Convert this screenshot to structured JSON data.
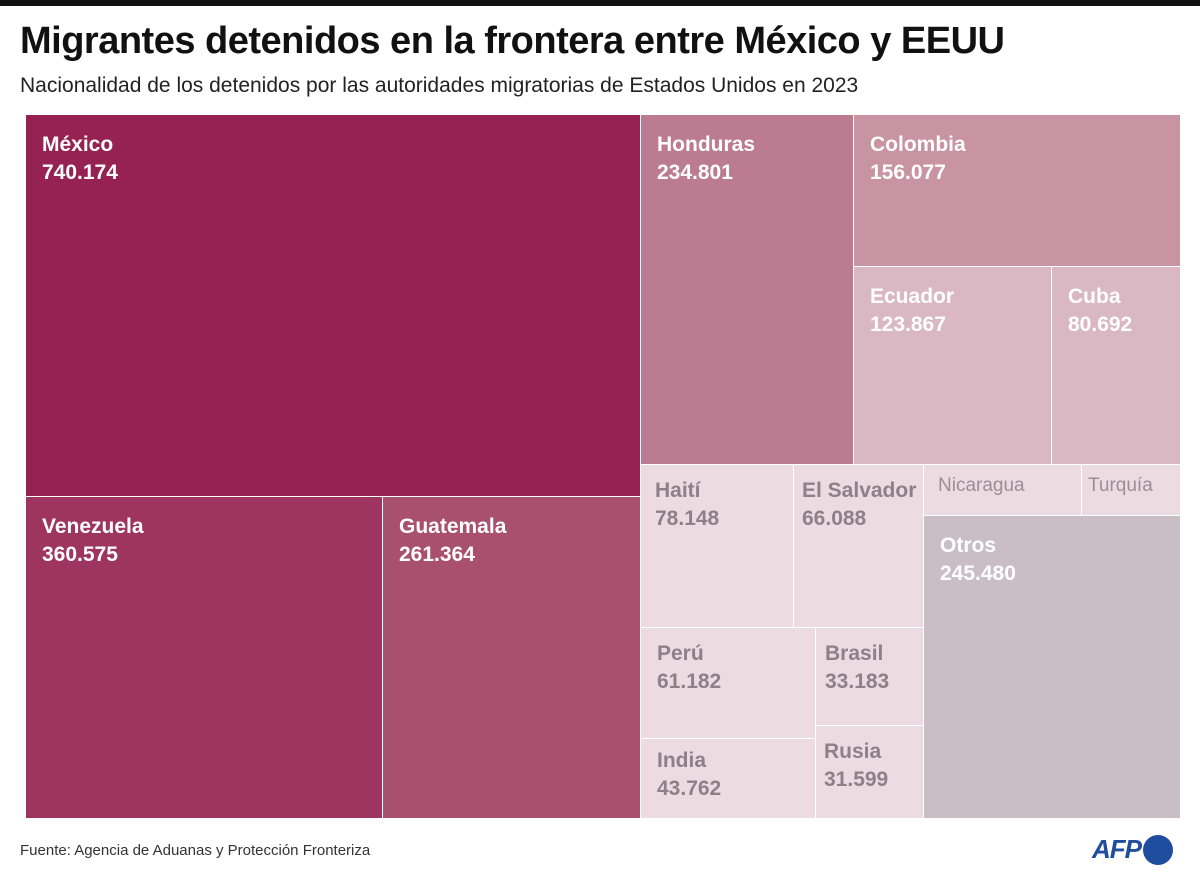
{
  "title": "Migrantes detenidos en la frontera entre México y EEUU",
  "subtitle": "Nacionalidad de los detenidos por las autoridades migratorias de Estados Unidos en 2023",
  "source": "Fuente: Agencia de Aduanas y Protección Fronteriza",
  "logo": "AFP",
  "chart_data": {
    "type": "treemap",
    "items": [
      {
        "name": "México",
        "label": "740.174",
        "value": 740174,
        "color": "#952253"
      },
      {
        "name": "Venezuela",
        "label": "360.575",
        "value": 360575,
        "color": "#9d3560"
      },
      {
        "name": "Guatemala",
        "label": "261.364",
        "value": 261364,
        "color": "#a8506e"
      },
      {
        "name": "Honduras",
        "label": "234.801",
        "value": 234801,
        "color": "#bb7b90"
      },
      {
        "name": "Colombia",
        "label": "156.077",
        "value": 156077,
        "color": "#c893a3"
      },
      {
        "name": "Ecuador",
        "label": "123.867",
        "value": 123867,
        "color": "#dab8c3"
      },
      {
        "name": "Cuba",
        "label": "80.692",
        "value": 80692,
        "color": "#dab8c3"
      },
      {
        "name": "Haití",
        "label": "78.148",
        "value": 78148,
        "color": "#ecdbe1"
      },
      {
        "name": "El Salvador",
        "label": "66.088",
        "value": 66088,
        "color": "#ecdbe1"
      },
      {
        "name": "Nicaragua",
        "color": "#ecdbe1"
      },
      {
        "name": "Turquía",
        "color": "#ecdbe1"
      },
      {
        "name": "Otros",
        "label": "245.480",
        "value": 245480,
        "color": "#c9bec5"
      },
      {
        "name": "Perú",
        "label": "61.182",
        "value": 61182,
        "color": "#ecdbe1"
      },
      {
        "name": "India",
        "label": "43.762",
        "value": 43762,
        "color": "#ecdbe1"
      },
      {
        "name": "Brasil",
        "label": "33.183",
        "value": 33183,
        "color": "#ecdbe1"
      },
      {
        "name": "Rusia",
        "label": "31.599",
        "value": 31599,
        "color": "#ecdbe1"
      }
    ]
  }
}
